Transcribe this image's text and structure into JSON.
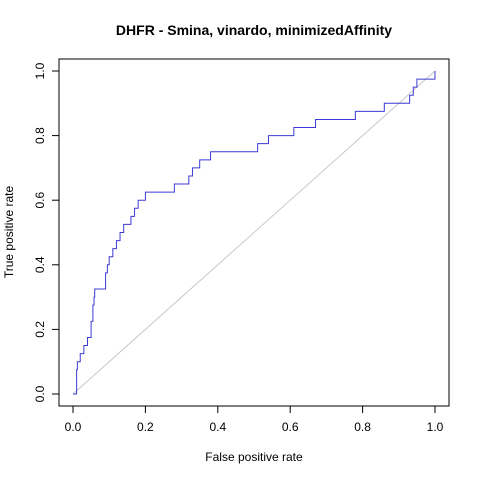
{
  "chart_data": {
    "type": "line",
    "title": "DHFR - Smina, vinardo, minimizedAffinity",
    "xlabel": "False positive rate",
    "ylabel": "True positive rate",
    "xlim": [
      0,
      1
    ],
    "ylim": [
      0,
      1
    ],
    "x_ticks": [
      "0.0",
      "0.2",
      "0.4",
      "0.6",
      "0.8",
      "1.0"
    ],
    "y_ticks": [
      "0.0",
      "0.2",
      "0.4",
      "0.6",
      "0.8",
      "1.0"
    ],
    "grid": false,
    "legend": "none",
    "colors": {
      "roc": "#3b3bd6",
      "diagonal": "#c8c8c8"
    },
    "reference_line": {
      "x": [
        0,
        1
      ],
      "y": [
        0,
        1
      ]
    },
    "series": [
      {
        "x": [
          0.0,
          0.01,
          0.01,
          0.012,
          0.012,
          0.02,
          0.02,
          0.03,
          0.03,
          0.04,
          0.04,
          0.05,
          0.05,
          0.055,
          0.055,
          0.058,
          0.058,
          0.06,
          0.06,
          0.065,
          0.065,
          0.09,
          0.09,
          0.095,
          0.095,
          0.1,
          0.1,
          0.11,
          0.11,
          0.12,
          0.12,
          0.13,
          0.13,
          0.14,
          0.14,
          0.16,
          0.16,
          0.17,
          0.17,
          0.18,
          0.18,
          0.19,
          0.19,
          0.2,
          0.2,
          0.28,
          0.28,
          0.32,
          0.32,
          0.33,
          0.33,
          0.35,
          0.35,
          0.38,
          0.38,
          0.51,
          0.51,
          0.54,
          0.54,
          0.61,
          0.61,
          0.67,
          0.67,
          0.76,
          0.76,
          0.78,
          0.78,
          0.86,
          0.86,
          0.93,
          0.93,
          0.94,
          0.94,
          0.95,
          0.95,
          0.98,
          0.98,
          1.0,
          1.0
        ],
        "y": [
          0.0,
          0.0,
          0.075,
          0.075,
          0.1,
          0.1,
          0.125,
          0.125,
          0.15,
          0.15,
          0.175,
          0.175,
          0.225,
          0.225,
          0.275,
          0.275,
          0.3,
          0.3,
          0.325,
          0.325,
          0.325,
          0.325,
          0.375,
          0.375,
          0.4,
          0.4,
          0.425,
          0.425,
          0.45,
          0.45,
          0.475,
          0.475,
          0.5,
          0.5,
          0.525,
          0.525,
          0.55,
          0.55,
          0.575,
          0.575,
          0.6,
          0.6,
          0.6,
          0.6,
          0.625,
          0.625,
          0.65,
          0.65,
          0.675,
          0.675,
          0.7,
          0.7,
          0.725,
          0.725,
          0.75,
          0.75,
          0.775,
          0.775,
          0.8,
          0.8,
          0.825,
          0.825,
          0.85,
          0.85,
          0.85,
          0.85,
          0.875,
          0.875,
          0.9,
          0.9,
          0.925,
          0.925,
          0.95,
          0.95,
          0.975,
          0.975,
          0.975,
          0.975,
          1.0
        ]
      }
    ]
  }
}
